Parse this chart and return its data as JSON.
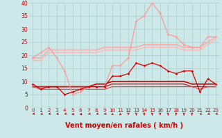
{
  "background_color": "#cce8e8",
  "grid_color": "#aacccc",
  "xlabel": "Vent moyen/en rafales ( km/h )",
  "xlabel_color": "#cc0000",
  "xlabel_fontsize": 7,
  "tick_color": "#cc0000",
  "xlim": [
    -0.5,
    23.5
  ],
  "ylim": [
    0,
    40
  ],
  "yticks": [
    0,
    5,
    10,
    15,
    20,
    25,
    30,
    35,
    40
  ],
  "xticks": [
    0,
    1,
    2,
    3,
    4,
    5,
    6,
    7,
    8,
    9,
    10,
    11,
    12,
    13,
    14,
    15,
    16,
    17,
    18,
    19,
    20,
    21,
    22,
    23
  ],
  "series": [
    {
      "x": [
        0,
        1,
        2,
        3,
        4,
        5,
        6,
        7,
        8,
        9,
        10,
        11,
        12,
        13,
        14,
        15,
        16,
        17,
        18,
        19,
        20,
        21,
        22,
        23
      ],
      "y": [
        19,
        21,
        23,
        19,
        14,
        5,
        6,
        8,
        8,
        8,
        16,
        16,
        19,
        33,
        35,
        40,
        36,
        28,
        27,
        24,
        23,
        23,
        27,
        27
      ],
      "color": "#ff9999",
      "linewidth": 0.9,
      "marker": "D",
      "markersize": 1.8,
      "zorder": 3
    },
    {
      "x": [
        0,
        1,
        2,
        3,
        4,
        5,
        6,
        7,
        8,
        9,
        10,
        11,
        12,
        13,
        14,
        15,
        16,
        17,
        18,
        19,
        20,
        21,
        22,
        23
      ],
      "y": [
        19,
        19,
        22,
        22,
        22,
        22,
        22,
        22,
        22,
        23,
        23,
        23,
        23,
        23,
        24,
        24,
        24,
        24,
        24,
        23,
        23,
        23,
        25,
        27
      ],
      "color": "#ffaaaa",
      "linewidth": 1.2,
      "marker": null,
      "markersize": 0,
      "zorder": 1
    },
    {
      "x": [
        0,
        1,
        2,
        3,
        4,
        5,
        6,
        7,
        8,
        9,
        10,
        11,
        12,
        13,
        14,
        15,
        16,
        17,
        18,
        19,
        20,
        21,
        22,
        23
      ],
      "y": [
        18,
        18,
        21,
        21,
        21,
        21,
        21,
        21,
        21,
        22,
        22,
        22,
        22,
        22,
        23,
        23,
        23,
        23,
        23,
        22,
        22,
        22,
        24,
        26
      ],
      "color": "#ffbbbb",
      "linewidth": 1.2,
      "marker": null,
      "markersize": 0,
      "zorder": 1
    },
    {
      "x": [
        0,
        1,
        2,
        3,
        4,
        5,
        6,
        7,
        8,
        9,
        10,
        11,
        12,
        13,
        14,
        15,
        16,
        17,
        18,
        19,
        20,
        21,
        22,
        23
      ],
      "y": [
        9,
        7,
        8,
        8,
        5,
        6,
        7,
        8,
        8,
        8,
        12,
        12,
        13,
        17,
        16,
        17,
        16,
        14,
        13,
        14,
        14,
        6,
        11,
        9
      ],
      "color": "#dd0000",
      "linewidth": 0.9,
      "marker": "D",
      "markersize": 1.8,
      "zorder": 4
    },
    {
      "x": [
        0,
        1,
        2,
        3,
        4,
        5,
        6,
        7,
        8,
        9,
        10,
        11,
        12,
        13,
        14,
        15,
        16,
        17,
        18,
        19,
        20,
        21,
        22,
        23
      ],
      "y": [
        8,
        8,
        8,
        8,
        8,
        8,
        8,
        8,
        9,
        9,
        10,
        10,
        10,
        10,
        10,
        10,
        10,
        10,
        10,
        10,
        9,
        9,
        9,
        9
      ],
      "color": "#cc0000",
      "linewidth": 1.2,
      "marker": null,
      "markersize": 0,
      "zorder": 2
    },
    {
      "x": [
        0,
        1,
        2,
        3,
        4,
        5,
        6,
        7,
        8,
        9,
        10,
        11,
        12,
        13,
        14,
        15,
        16,
        17,
        18,
        19,
        20,
        21,
        22,
        23
      ],
      "y": [
        8,
        8,
        8,
        8,
        8,
        8,
        8,
        8,
        8,
        8,
        9,
        9,
        9,
        9,
        9,
        9,
        9,
        9,
        9,
        9,
        8,
        8,
        8,
        8
      ],
      "color": "#cc2222",
      "linewidth": 1.0,
      "marker": null,
      "markersize": 0,
      "zorder": 2
    },
    {
      "x": [
        0,
        1,
        2,
        3,
        4,
        5,
        6,
        7,
        8,
        9,
        10,
        11,
        12,
        13,
        14,
        15,
        16,
        17,
        18,
        19,
        20,
        21,
        22,
        23
      ],
      "y": [
        8,
        7,
        7,
        7,
        7,
        7,
        7,
        7,
        7,
        7,
        8,
        8,
        8,
        8,
        8,
        8,
        8,
        8,
        8,
        8,
        8,
        7,
        8,
        8
      ],
      "color": "#ee4444",
      "linewidth": 0.9,
      "marker": null,
      "markersize": 0,
      "zorder": 2
    }
  ],
  "arrow_color": "#cc0000",
  "arrow_angles": [
    225,
    225,
    225,
    225,
    225,
    270,
    270,
    225,
    225,
    225,
    200,
    200,
    180,
    180,
    180,
    180,
    180,
    180,
    180,
    180,
    180,
    225,
    225,
    225
  ]
}
